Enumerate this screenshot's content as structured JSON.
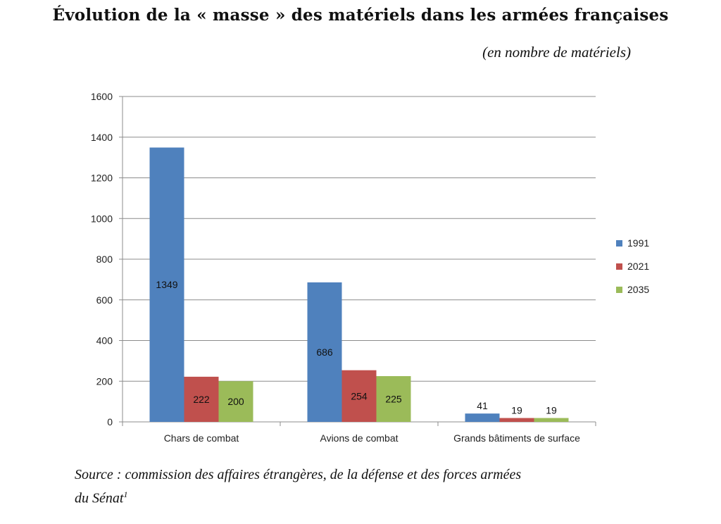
{
  "header": {
    "title": "Évolution de la « masse » des matériels dans les armées françaises",
    "subtitle": "(en nombre de matériels)"
  },
  "footer": {
    "source_main": "Source : commission des affaires étrangères, de la défense et des forces armées",
    "source_line2": "du Sénat",
    "footnote_mark": "1"
  },
  "chart_data": {
    "type": "bar",
    "title": "",
    "xlabel": "",
    "ylabel": "",
    "ylim": [
      0,
      1600
    ],
    "yticks": [
      0,
      200,
      400,
      600,
      800,
      1000,
      1200,
      1400,
      1600
    ],
    "grid": true,
    "legend": "right",
    "categories": [
      "Chars de combat",
      "Avions de combat",
      "Grands bâtiments de surface"
    ],
    "series": [
      {
        "name": "1991",
        "color": "#4f81bd",
        "values": [
          1349,
          686,
          41
        ]
      },
      {
        "name": "2021",
        "color": "#c0504d",
        "values": [
          222,
          254,
          19
        ]
      },
      {
        "name": "2035",
        "color": "#9bbb59",
        "values": [
          200,
          225,
          19
        ]
      }
    ]
  }
}
